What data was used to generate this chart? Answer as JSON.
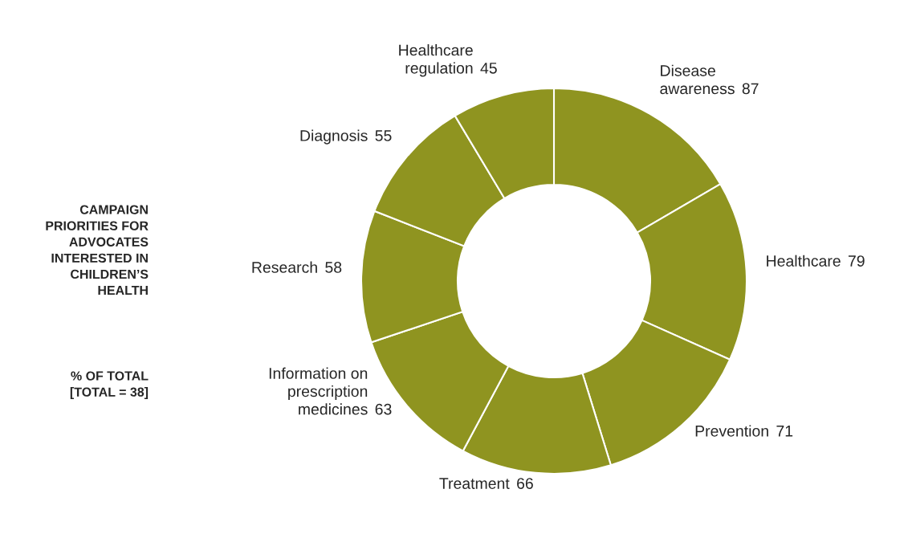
{
  "chart_data": {
    "type": "donut",
    "title": "CAMPAIGN\nPRIORITIES FOR\nADVOCATES\nINTERESTED IN\nCHILDREN’S\nHEALTH",
    "subtitle": "% OF TOTAL\n[TOTAL = 38]",
    "categories": [
      "Disease\nawareness",
      "Healthcare",
      "Prevention",
      "Treatment",
      "Information on\nprescription\nmedicines",
      "Research",
      "Diagnosis",
      "Healthcare\nregulation"
    ],
    "values": [
      87,
      79,
      71,
      66,
      63,
      58,
      55,
      45
    ],
    "colors": [
      "#8f9420",
      "#8f9420",
      "#8f9420",
      "#8f9420",
      "#8f9420",
      "#8f9420",
      "#8f9420",
      "#8f9420"
    ],
    "data_labels": true,
    "legend": false
  }
}
